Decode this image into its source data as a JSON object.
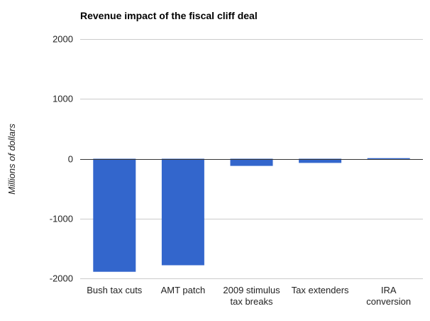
{
  "chart_data": {
    "type": "bar",
    "title": "Revenue impact of the fiscal cliff deal",
    "xlabel": "",
    "ylabel": "Millions of dollars",
    "ylim": [
      -2000,
      2000
    ],
    "yticks": [
      2000,
      1000,
      0,
      -1000,
      -2000
    ],
    "grid": true,
    "legend": "none",
    "bar_color": "#3366cc",
    "categories": [
      [
        "Bush tax cuts"
      ],
      [
        "AMT patch"
      ],
      [
        "2009 stimulus",
        "tax breaks"
      ],
      [
        "Tax extenders"
      ],
      [
        "IRA",
        "conversion"
      ]
    ],
    "values": [
      -1890,
      -1780,
      -120,
      -70,
      10
    ]
  }
}
